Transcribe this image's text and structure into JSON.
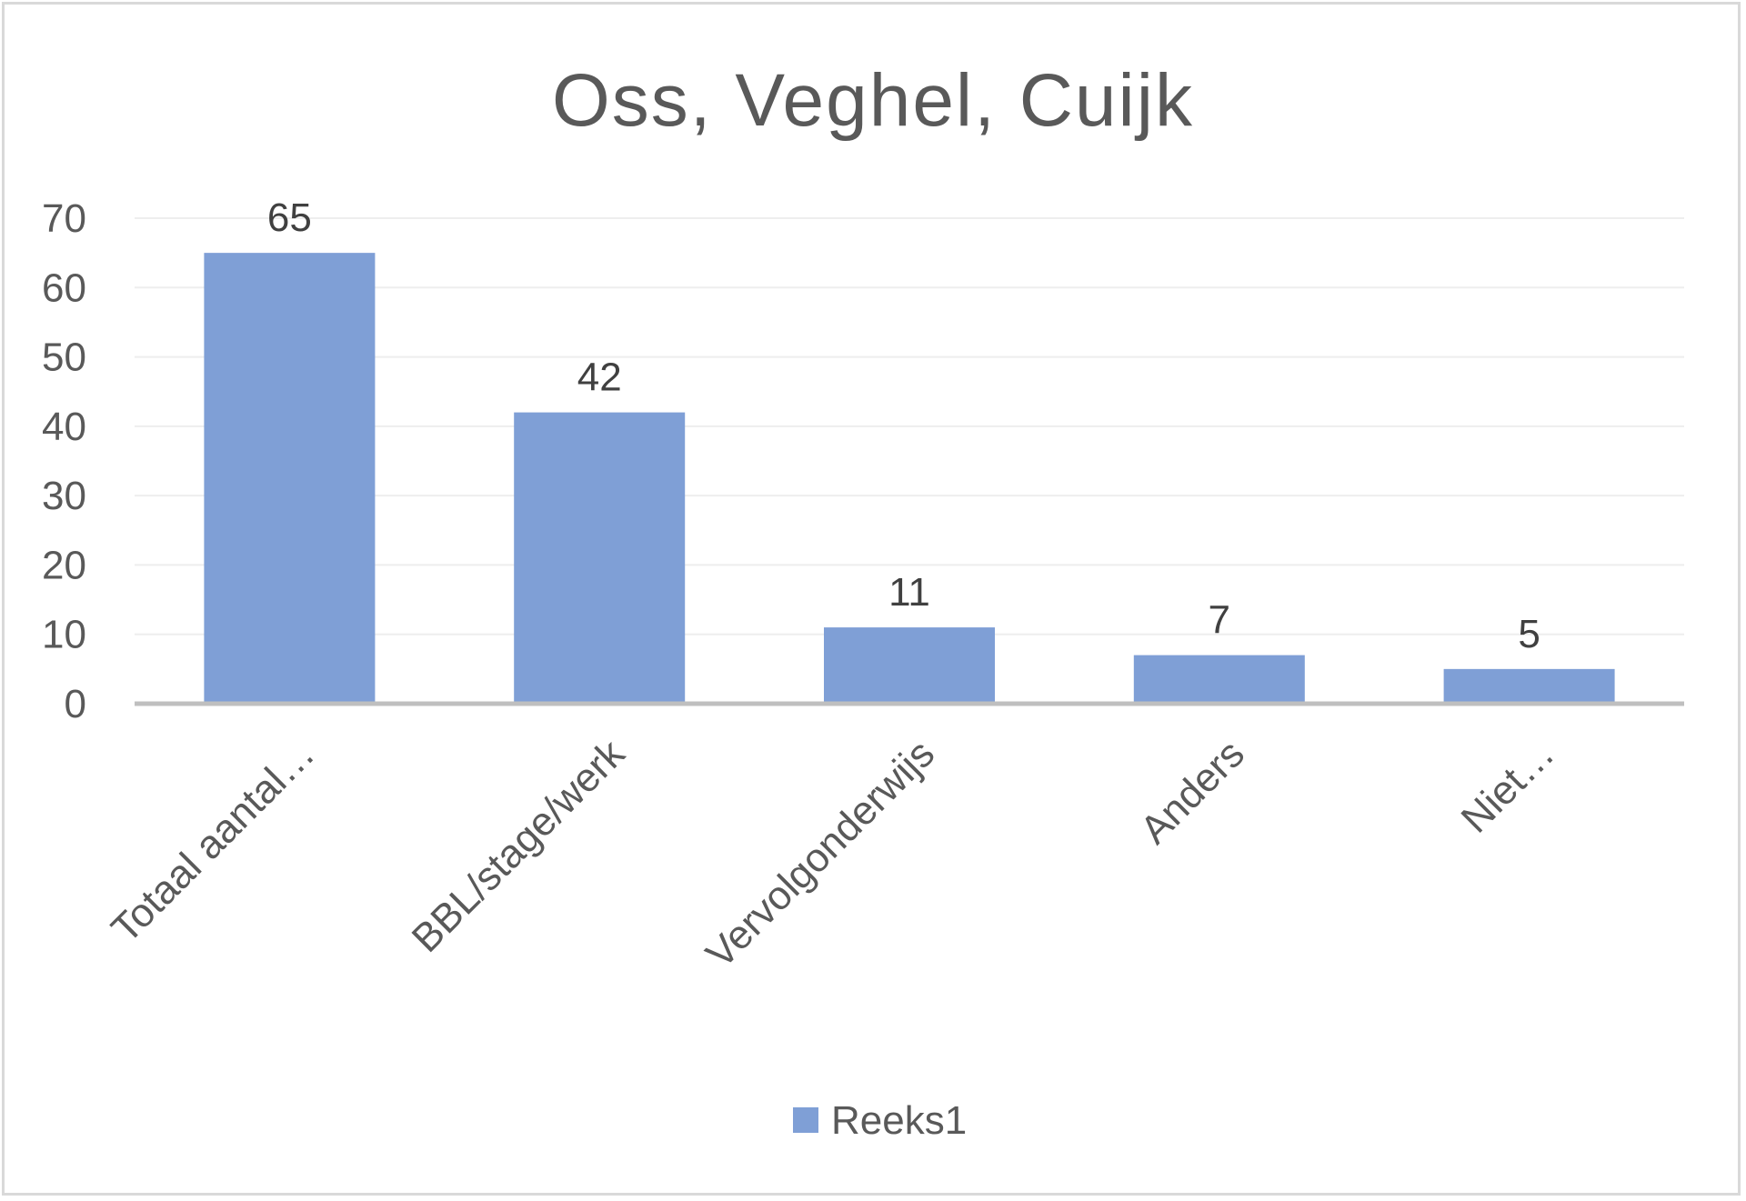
{
  "chart_data": {
    "type": "bar",
    "title": "Oss, Veghel, Cuijk",
    "categories": [
      "Totaal aantal…",
      "BBL/stage/werk",
      "Vervolgonderwijs",
      "Anders",
      "Niet…"
    ],
    "series": [
      {
        "name": "Reeks1",
        "values": [
          65,
          42,
          11,
          7,
          5
        ],
        "color": "#7f9fd6"
      }
    ],
    "ylim": [
      0,
      70
    ],
    "yticks": [
      0,
      10,
      20,
      30,
      40,
      50,
      60,
      70
    ],
    "grid": true,
    "legend": "bottom",
    "data_labels": true
  }
}
